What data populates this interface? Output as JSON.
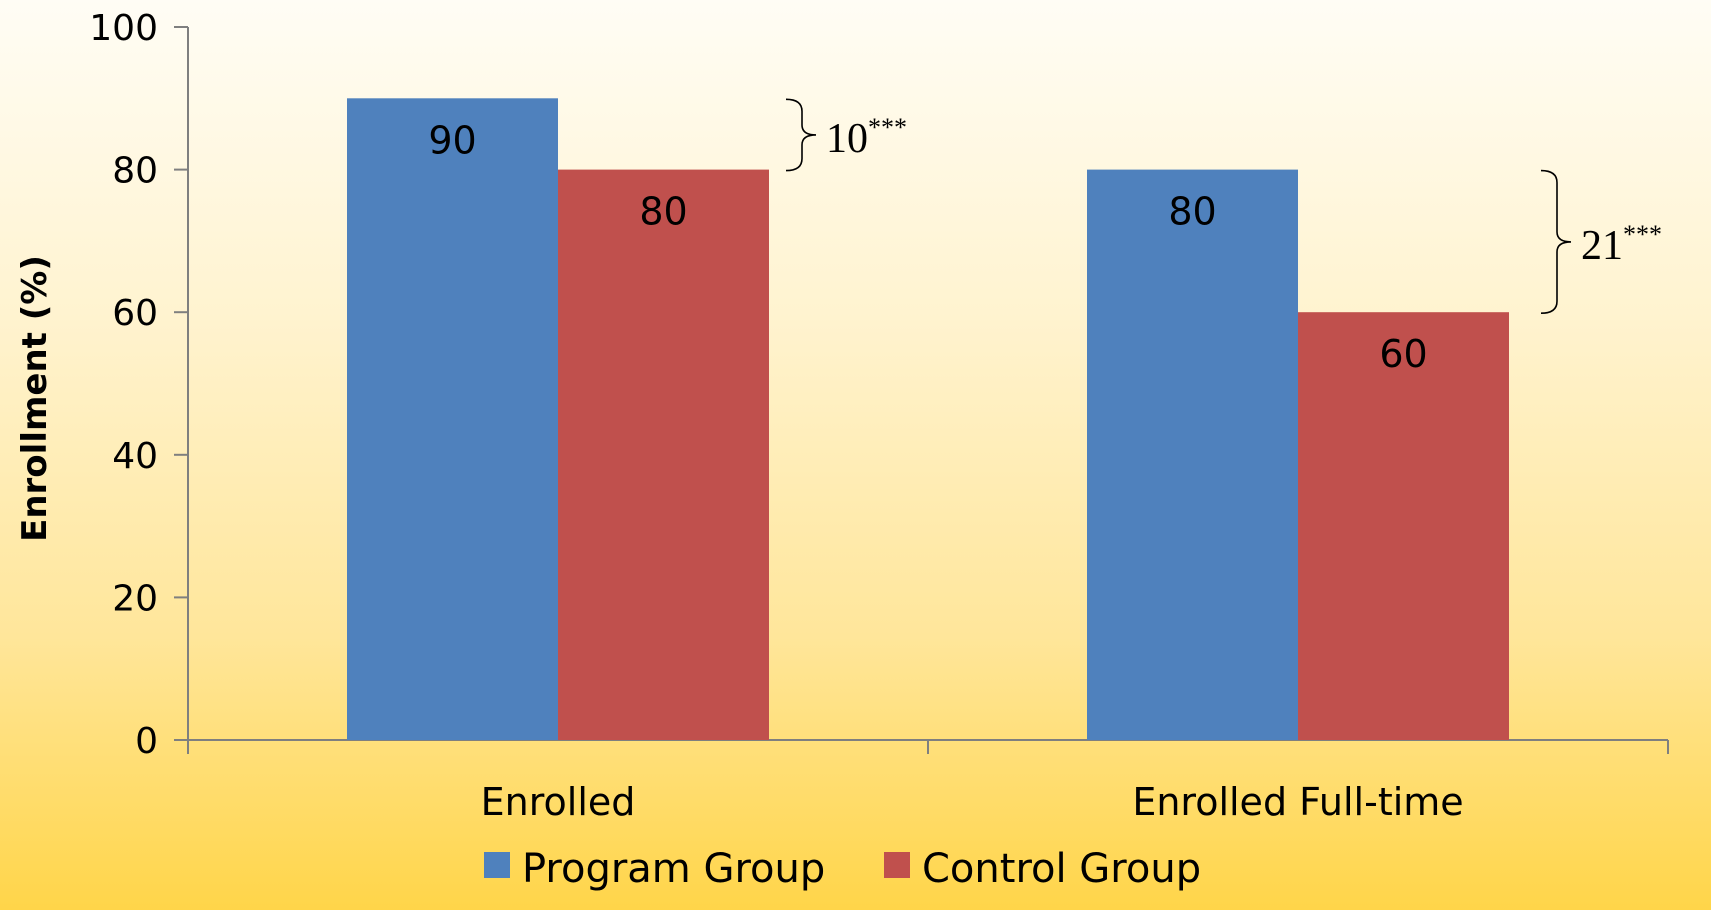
{
  "colors": {
    "program": "#4f81bd",
    "control": "#c0504d",
    "axis": "#7f7f7f"
  },
  "chart_data": {
    "type": "bar",
    "title": "",
    "xlabel": "",
    "ylabel": "Enrollment (%)",
    "ylim": [
      0,
      100
    ],
    "yticks": [
      0,
      20,
      40,
      60,
      80,
      100
    ],
    "grid": false,
    "legend_position": "bottom",
    "categories": [
      "Enrolled",
      "Enrolled Full-time"
    ],
    "series": [
      {
        "name": "Program Group",
        "values": [
          90,
          80
        ],
        "color": "#4f81bd"
      },
      {
        "name": "Control Group",
        "values": [
          80,
          60
        ],
        "color": "#c0504d"
      }
    ],
    "data_labels": [
      [
        "90",
        "80"
      ],
      [
        "80",
        "60"
      ]
    ],
    "annotations": [
      {
        "category": "Enrolled",
        "value": "10",
        "significance": "***"
      },
      {
        "category": "Enrolled Full-time",
        "value": "21",
        "significance": "***"
      }
    ]
  }
}
